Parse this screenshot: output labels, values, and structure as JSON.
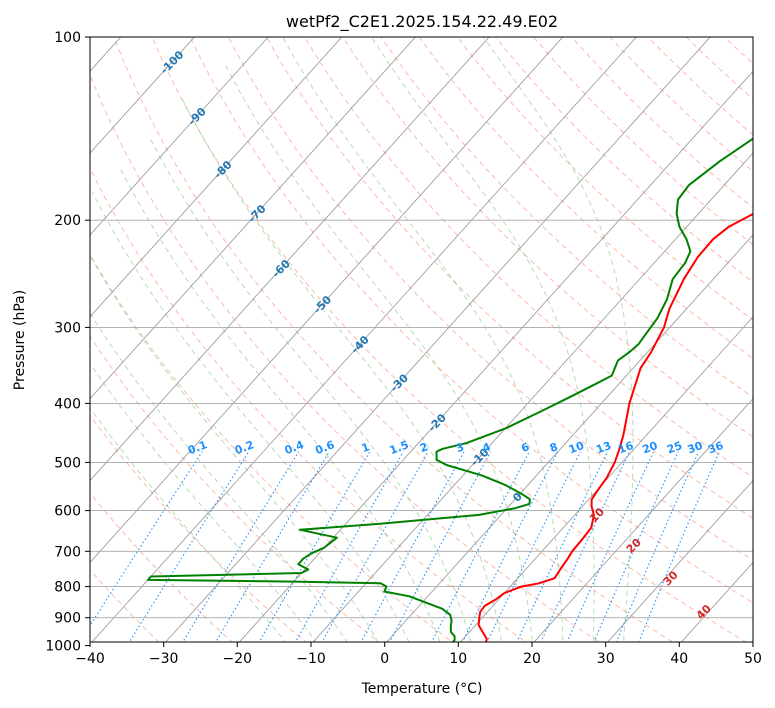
{
  "chart_data": {
    "type": "line",
    "title": "wetPf2_C2E1.2025.154.22.49.E02",
    "xlabel": "Temperature (°C)",
    "ylabel": "Pressure (hPa)",
    "xlim": [
      -40,
      50
    ],
    "ylim": [
      1050,
      100
    ],
    "y_scale": "log",
    "x_ticks": [
      "−40",
      "−30",
      "−20",
      "−10",
      "0",
      "10",
      "20",
      "30",
      "40",
      "50"
    ],
    "y_ticks": [
      100,
      200,
      300,
      400,
      500,
      600,
      700,
      800,
      900,
      1000
    ],
    "grid": true,
    "colors": {
      "temperature": "#ff0000",
      "dewpoint": "#008000",
      "isotherm": "#808080",
      "dry_adiabat": "#fa8060",
      "moist_adiabat": "#60b060",
      "mixing_ratio": "#1e90ff",
      "isotherm_label": "#1f77b4",
      "mixing_label": "#1e90ff",
      "adiabat_label": "#d62728"
    },
    "isotherm_labels": [
      "-100",
      "-90",
      "-80",
      "-70",
      "-60",
      "-50",
      "-40",
      "-30",
      "-20",
      "-10",
      "0"
    ],
    "mixing_ratio_labels": [
      "0.1",
      "0.2",
      "0.4",
      "0.6",
      "1",
      "1.5",
      "2",
      "3",
      "4",
      "6",
      "8",
      "10",
      "13",
      "16",
      "20",
      "25",
      "30",
      "36"
    ],
    "adiabat_labels": [
      "10",
      "20",
      "30",
      "40"
    ],
    "series": [
      {
        "name": "",
        "role": "temperature",
        "points": [
          [
            1000,
            13.8
          ],
          [
            975,
            13.2
          ],
          [
            950,
            11.8
          ],
          [
            925,
            10.4
          ],
          [
            900,
            9.6
          ],
          [
            880,
            9.0
          ],
          [
            860,
            8.9
          ],
          [
            840,
            9.6
          ],
          [
            820,
            10.0
          ],
          [
            800,
            11.5
          ],
          [
            790,
            13.5
          ],
          [
            775,
            15.0
          ],
          [
            750,
            14.7
          ],
          [
            720,
            14.4
          ],
          [
            700,
            14.1
          ],
          [
            670,
            14.0
          ],
          [
            640,
            13.8
          ],
          [
            610,
            12.6
          ],
          [
            590,
            11.2
          ],
          [
            575,
            10.4
          ],
          [
            555,
            10.1
          ],
          [
            530,
            9.8
          ],
          [
            500,
            9.0
          ],
          [
            475,
            8.0
          ],
          [
            450,
            6.8
          ],
          [
            400,
            3.8
          ],
          [
            350,
            1.0
          ],
          [
            330,
            0.5
          ],
          [
            300,
            -0.8
          ],
          [
            280,
            -2.3
          ],
          [
            250,
            -4.0
          ],
          [
            230,
            -4.8
          ],
          [
            215,
            -4.9
          ],
          [
            205,
            -4.3
          ],
          [
            195,
            -2.5
          ],
          [
            180,
            2.5
          ],
          [
            160,
            7.5
          ],
          [
            140,
            10.5
          ],
          [
            125,
            12.8
          ],
          [
            112,
            15.5
          ],
          [
            105,
            17.5
          ],
          [
            100,
            19.5
          ]
        ]
      },
      {
        "name": "",
        "role": "dewpoint",
        "points": [
          [
            1000,
            9.0
          ],
          [
            980,
            9.0
          ],
          [
            965,
            8.5
          ],
          [
            950,
            7.5
          ],
          [
            930,
            6.8
          ],
          [
            910,
            6.2
          ],
          [
            890,
            5.3
          ],
          [
            870,
            3.5
          ],
          [
            850,
            0.5
          ],
          [
            830,
            -2.5
          ],
          [
            815,
            -6.5
          ],
          [
            800,
            -6.8
          ],
          [
            790,
            -8.0
          ],
          [
            785,
            -20.0
          ],
          [
            780,
            -40.0
          ],
          [
            770,
            -40.0
          ],
          [
            760,
            -20.0
          ],
          [
            750,
            -19.5
          ],
          [
            735,
            -21.5
          ],
          [
            720,
            -21.5
          ],
          [
            705,
            -21.0
          ],
          [
            690,
            -20.0
          ],
          [
            665,
            -19.5
          ],
          [
            645,
            -25.5
          ],
          [
            630,
            -15.0
          ],
          [
            610,
            -3.0
          ],
          [
            595,
            1.0
          ],
          [
            585,
            2.5
          ],
          [
            575,
            2.0
          ],
          [
            565,
            0.5
          ],
          [
            545,
            -3.0
          ],
          [
            525,
            -7.5
          ],
          [
            505,
            -13.5
          ],
          [
            495,
            -15.5
          ],
          [
            480,
            -16.5
          ],
          [
            475,
            -16.0
          ],
          [
            465,
            -13.5
          ],
          [
            440,
            -10.0
          ],
          [
            410,
            -7.0
          ],
          [
            390,
            -5.0
          ],
          [
            370,
            -3.0
          ],
          [
            360,
            -2.0
          ],
          [
            350,
            -2.5
          ],
          [
            340,
            -3.0
          ],
          [
            330,
            -2.5
          ],
          [
            320,
            -2.2
          ],
          [
            305,
            -2.5
          ],
          [
            290,
            -2.8
          ],
          [
            270,
            -3.8
          ],
          [
            250,
            -5.5
          ],
          [
            235,
            -5.8
          ],
          [
            225,
            -6.5
          ],
          [
            215,
            -8.5
          ],
          [
            205,
            -11.0
          ],
          [
            195,
            -13.0
          ],
          [
            185,
            -14.5
          ],
          [
            175,
            -14.8
          ],
          [
            160,
            -13.5
          ],
          [
            145,
            -11.5
          ],
          [
            130,
            -9.0
          ],
          [
            115,
            -6.0
          ],
          [
            105,
            -3.5
          ],
          [
            100,
            -2.0
          ]
        ]
      }
    ]
  }
}
